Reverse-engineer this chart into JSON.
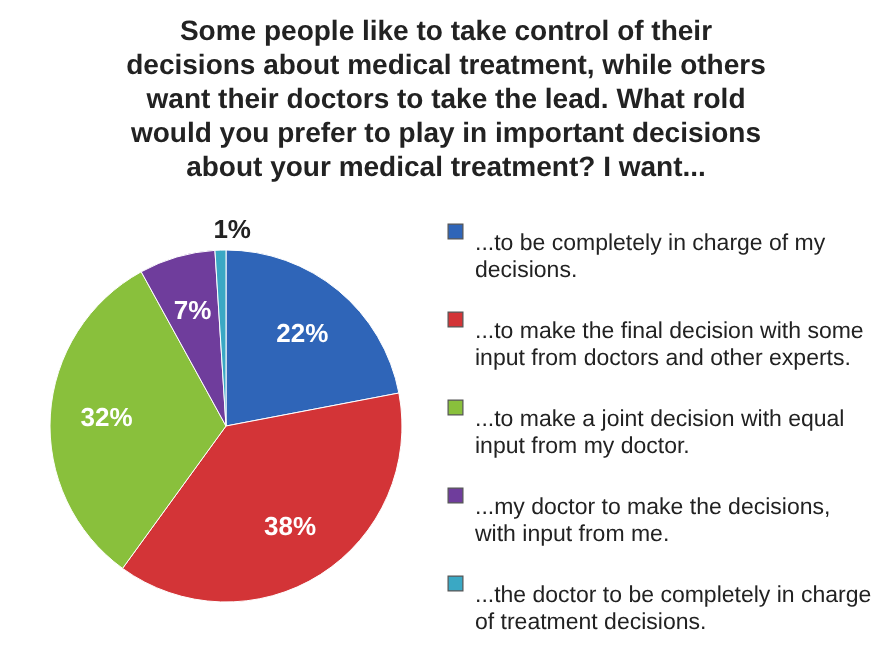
{
  "chart_data": {
    "type": "pie",
    "title": "Some people like to take control of their decisions about medical treatment, while others want their doctors to take the lead.  What rold would you prefer to play in important decisions about your medical treatment?  I want...",
    "categories": [
      "...to be completely in charge of my decisions.",
      "...to make the final decision with some input from doctors and other experts.",
      "...to make a joint decision with equal input from my doctor.",
      "...my doctor to make the decisions, with input from me.",
      "...the doctor to be completely in charge of treatment decisions."
    ],
    "values": [
      22,
      38,
      32,
      7,
      1
    ],
    "value_labels": [
      "22%",
      "38%",
      "32%",
      "7%",
      "1%"
    ],
    "colors": [
      "#2f65b8",
      "#d33437",
      "#89c03c",
      "#6f3d9c",
      "#3aa8c4"
    ],
    "legend": "right"
  }
}
